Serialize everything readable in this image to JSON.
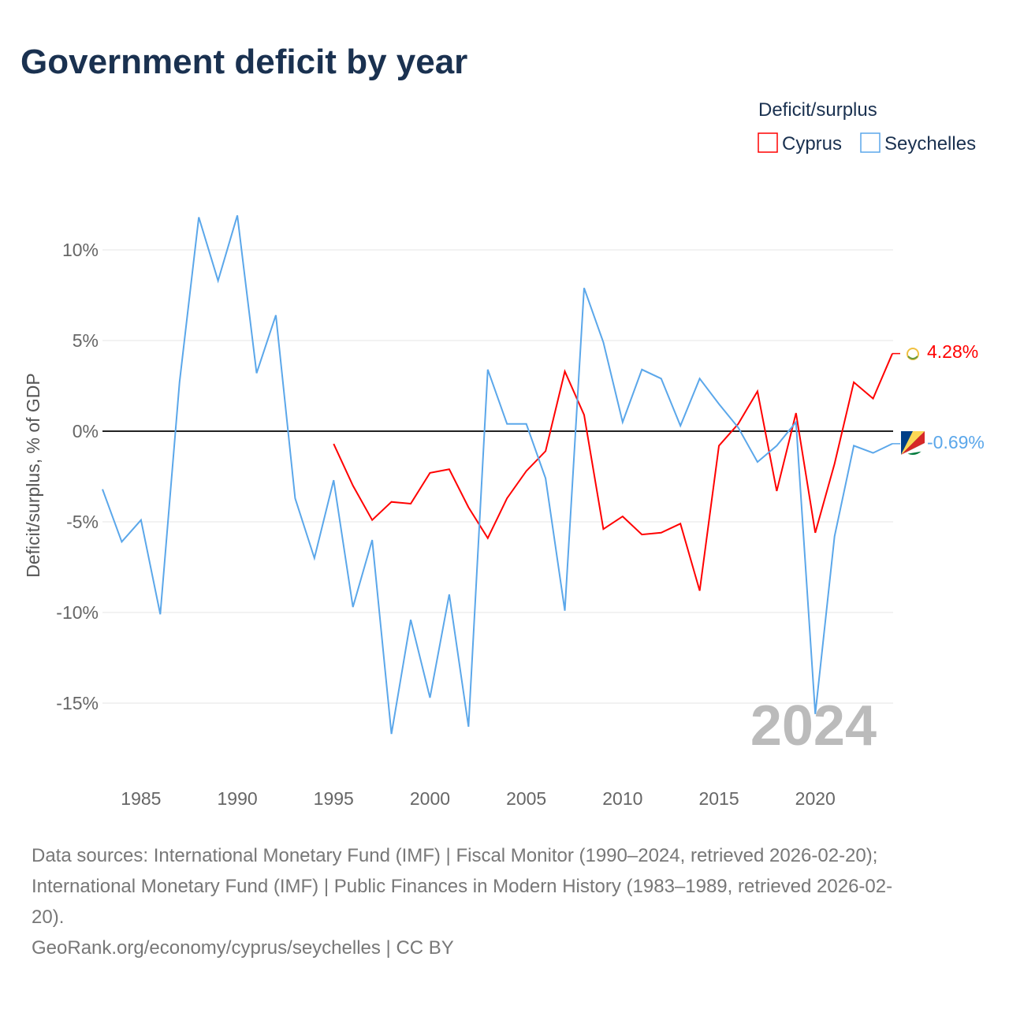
{
  "title": "Government deficit by year",
  "legend": {
    "title": "Deficit/surplus",
    "items": [
      "Cyprus",
      "Seychelles"
    ]
  },
  "year_overlay": "2024",
  "end_labels": {
    "cyprus": "4.28%",
    "seychelles": "-0.69%"
  },
  "colors": {
    "cyprus": "#ff0000",
    "seychelles": "#5ba7ea"
  },
  "sources": [
    "Data sources: International Monetary Fund (IMF) | Fiscal Monitor (1990–2024, retrieved 2026-02-20);",
    "International Monetary Fund (IMF) | Public Finances in Modern History (1983–1989, retrieved 2026-02-",
    "20).",
    "GeoRank.org/economy/cyprus/seychelles | CC BY"
  ],
  "chart_data": {
    "type": "line",
    "title": "Government deficit by year",
    "xlabel": "",
    "ylabel": "Deficit/surplus, % of GDP",
    "xlim": [
      1983,
      2024
    ],
    "ylim": [
      -18,
      12
    ],
    "xticks": [
      1985,
      1990,
      1995,
      2000,
      2005,
      2010,
      2015,
      2020
    ],
    "xtick_labels": [
      "1985",
      "1990",
      "1995",
      "2000",
      "2005",
      "2010",
      "2015",
      "2020"
    ],
    "yticks": [
      10,
      5,
      0,
      -5,
      -10,
      -15
    ],
    "ytick_labels": [
      "10%",
      "5%",
      "0%",
      "-5%",
      "-10%",
      "-15%"
    ],
    "legend_position": "top-right",
    "series": [
      {
        "name": "Cyprus",
        "start_year": 1995,
        "values": [
          -0.7,
          -3.0,
          -4.9,
          -3.9,
          -4.0,
          -2.3,
          -2.1,
          -4.2,
          -5.9,
          -3.7,
          -2.2,
          -1.1,
          3.3,
          0.9,
          -5.4,
          -4.7,
          -5.7,
          -5.6,
          -5.1,
          -8.8,
          -0.8,
          0.4,
          2.2,
          -3.3,
          1.0,
          -5.6,
          -1.8,
          2.7,
          1.8,
          4.28
        ]
      },
      {
        "name": "Seychelles",
        "start_year": 1983,
        "values": [
          -3.2,
          -6.1,
          -4.9,
          -10.1,
          2.7,
          11.8,
          8.3,
          11.9,
          3.2,
          6.4,
          -3.7,
          -7.0,
          -2.7,
          -9.7,
          -6.0,
          -16.7,
          -10.4,
          -14.7,
          -9.0,
          -16.3,
          3.4,
          0.4,
          0.4,
          -2.6,
          -9.9,
          7.9,
          4.9,
          0.5,
          3.4,
          2.9,
          0.3,
          2.9,
          1.5,
          0.2,
          -1.7,
          -0.8,
          0.5,
          -15.6,
          -5.8,
          -0.8,
          -1.2,
          -0.69
        ]
      }
    ]
  }
}
